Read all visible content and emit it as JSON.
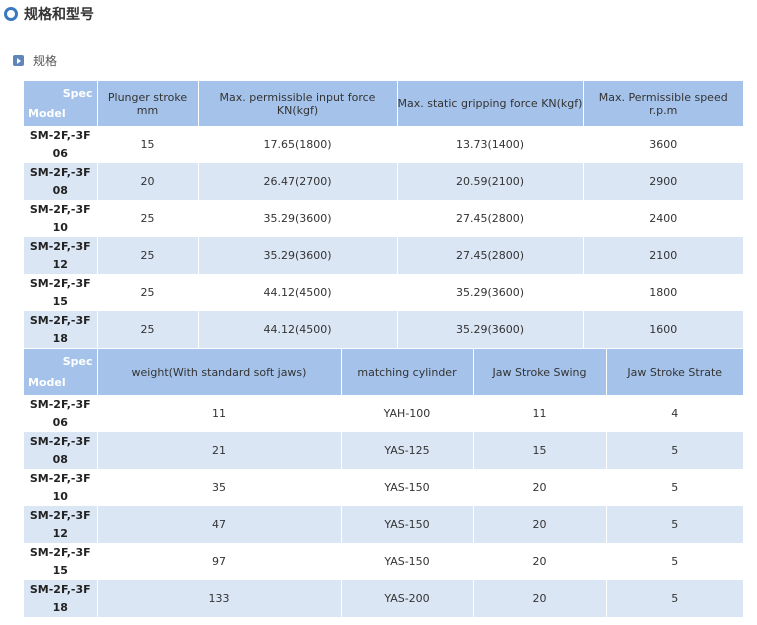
{
  "header": {
    "title": "规格和型号"
  },
  "section": {
    "title": "规格"
  },
  "tables": [
    {
      "header": {
        "spec": "Spec",
        "model": "Model",
        "columns": [
          "Plunger stroke mm",
          "Max. permissible input force KN(kgf)",
          "Max. static gripping force KN(kgf)",
          "Max. Permissible speed r.p.m"
        ]
      },
      "rows": [
        {
          "model": "SM-2F,-3F\n06",
          "cells": [
            "15",
            "17.65(1800)",
            "13.73(1400)",
            "3600"
          ]
        },
        {
          "model": "SM-2F,-3F\n08",
          "cells": [
            "20",
            "26.47(2700)",
            "20.59(2100)",
            "2900"
          ]
        },
        {
          "model": "SM-2F,-3F\n10",
          "cells": [
            "25",
            "35.29(3600)",
            "27.45(2800)",
            "2400"
          ]
        },
        {
          "model": "SM-2F,-3F\n12",
          "cells": [
            "25",
            "35.29(3600)",
            "27.45(2800)",
            "2100"
          ]
        },
        {
          "model": "SM-2F,-3F\n15",
          "cells": [
            "25",
            "44.12(4500)",
            "35.29(3600)",
            "1800"
          ]
        },
        {
          "model": "SM-2F,-3F\n18",
          "cells": [
            "25",
            "44.12(4500)",
            "35.29(3600)",
            "1600"
          ]
        }
      ]
    },
    {
      "header": {
        "spec": "Spec",
        "model": "Model",
        "columns": [
          "weight(With standard soft jaws)",
          "matching cylinder",
          "Jaw Stroke Swing",
          "Jaw Stroke Strate"
        ]
      },
      "rows": [
        {
          "model": "SM-2F,-3F\n06",
          "cells": [
            "11",
            "YAH-100",
            "11",
            "4"
          ]
        },
        {
          "model": "SM-2F,-3F\n08",
          "cells": [
            "21",
            "YAS-125",
            "15",
            "5"
          ]
        },
        {
          "model": "SM-2F,-3F\n10",
          "cells": [
            "35",
            "YAS-150",
            "20",
            "5"
          ]
        },
        {
          "model": "SM-2F,-3F\n12",
          "cells": [
            "47",
            "YAS-150",
            "20",
            "5"
          ]
        },
        {
          "model": "SM-2F,-3F\n15",
          "cells": [
            "97",
            "YAS-150",
            "20",
            "5"
          ]
        },
        {
          "model": "SM-2F,-3F\n18",
          "cells": [
            "133",
            "YAS-200",
            "20",
            "5"
          ]
        }
      ]
    }
  ]
}
